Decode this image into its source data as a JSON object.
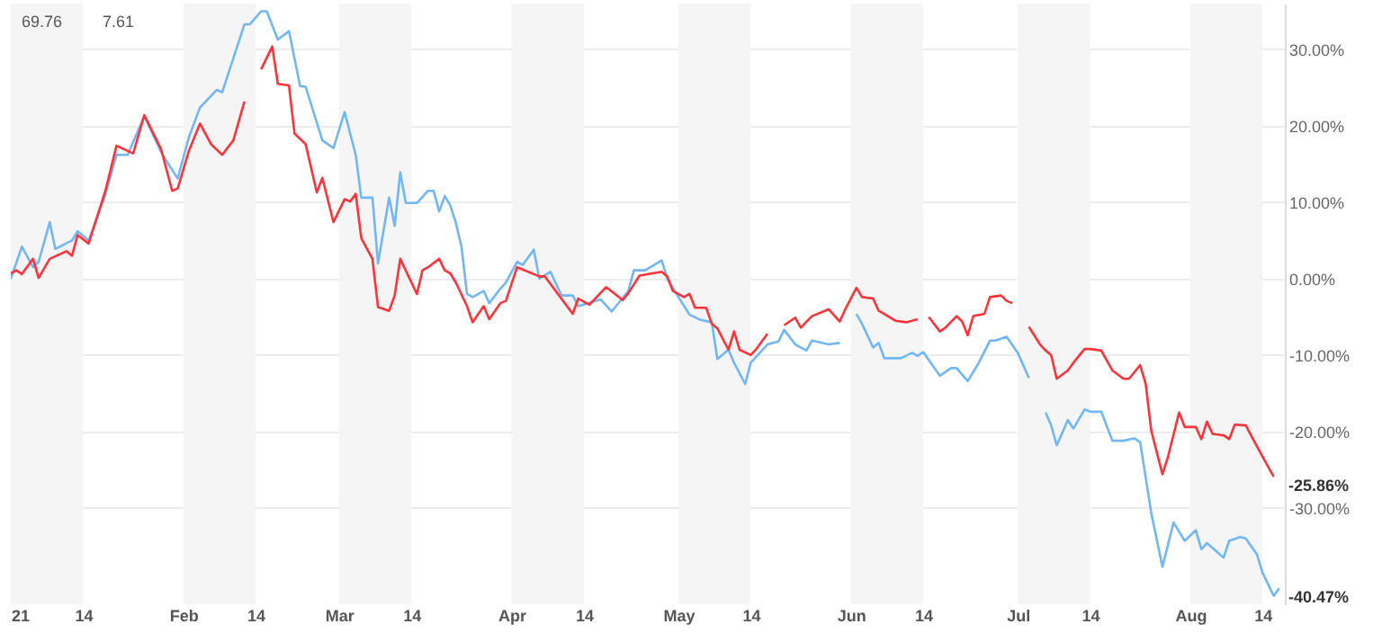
{
  "chart_data": {
    "type": "line",
    "xlim": [
      "--01-01",
      "--08-18"
    ],
    "xticks": [
      {
        "value": "--01-01",
        "label": "21"
      },
      {
        "value": "--01-14",
        "label": "14"
      },
      {
        "value": "--02-01",
        "label": "Feb"
      },
      {
        "value": "--02-14",
        "label": "14"
      },
      {
        "value": "--03-01",
        "label": "Mar"
      },
      {
        "value": "--03-14",
        "label": "14"
      },
      {
        "value": "--04-01",
        "label": "Apr"
      },
      {
        "value": "--04-14",
        "label": "14"
      },
      {
        "value": "--05-01",
        "label": "May"
      },
      {
        "value": "--05-14",
        "label": "14"
      },
      {
        "value": "--06-01",
        "label": "Jun"
      },
      {
        "value": "--06-14",
        "label": "14"
      },
      {
        "value": "--07-01",
        "label": "Jul"
      },
      {
        "value": "--07-14",
        "label": "14"
      },
      {
        "value": "--08-01",
        "label": "Aug"
      },
      {
        "value": "--08-14",
        "label": "14"
      }
    ],
    "ylim": [
      -42.6,
      36
    ],
    "yticks": [
      {
        "value": 30,
        "label": "30.00%"
      },
      {
        "value": 20,
        "label": "20.00%"
      },
      {
        "value": 10,
        "label": "10.00%"
      },
      {
        "value": 0,
        "label": "0.00%"
      },
      {
        "value": -10,
        "label": "-10.00%"
      },
      {
        "value": -20,
        "label": "-20.00%"
      },
      {
        "value": -30,
        "label": "-30.00%"
      }
    ],
    "grid": "y",
    "bands": [
      {
        "axis": "x",
        "from": "--01-01",
        "to": "--01-14",
        "color": "#f5f5f5"
      },
      {
        "axis": "x",
        "from": "--02-01",
        "to": "--02-14",
        "color": "#f5f5f5"
      },
      {
        "axis": "x",
        "from": "--03-01",
        "to": "--03-14",
        "color": "#f5f5f5"
      },
      {
        "axis": "x",
        "from": "--04-01",
        "to": "--04-14",
        "color": "#f5f5f5"
      },
      {
        "axis": "x",
        "from": "--05-01",
        "to": "--05-14",
        "color": "#f5f5f5"
      },
      {
        "axis": "x",
        "from": "--06-01",
        "to": "--06-14",
        "color": "#f5f5f5"
      },
      {
        "axis": "x",
        "from": "--07-01",
        "to": "--07-14",
        "color": "#f5f5f5"
      },
      {
        "axis": "x",
        "from": "--08-01",
        "to": "--08-14",
        "color": "#f5f5f5"
      }
    ],
    "annotations": [
      "69.76",
      "7.61",
      "-25.86%",
      "-40.47%"
    ],
    "series": [
      {
        "color": "#72b6f4",
        "x": [
          "--01-01",
          "--01-03",
          "--01-05",
          "--01-06",
          "--01-08",
          "--01-09",
          "--01-12",
          "--01-13",
          "--01-15",
          "--01-18",
          "--01-20",
          "--01-22",
          "--01-25",
          "--01-28",
          "--01-29",
          "--01-31",
          "--02-02",
          "--02-04",
          "--02-07",
          "--02-08",
          "--02-12",
          "--02-13",
          "--02-15",
          "--02-16",
          "--02-18",
          "--02-20",
          "--02-22",
          "--02-23",
          "--02-26",
          "--02-28",
          "--03-02",
          "--03-04",
          "--03-05",
          "--03-07",
          "--03-08",
          "--03-10",
          "--03-11",
          "--03-12",
          "--03-13",
          "--03-15",
          "--03-17",
          "--03-18",
          "--03-19",
          "--03-20",
          "--03-21",
          "--03-22",
          "--03-23",
          "--03-24",
          "--03-25",
          "--03-27",
          "--03-28",
          "--03-30",
          "--03-31",
          "--04-02",
          "--04-03",
          "--04-05",
          "--04-06",
          "--04-08",
          "--04-10",
          "--04-12",
          "--04-13",
          "--04-17",
          "--04-19",
          "--04-22",
          "--04-23",
          "--04-25",
          "--04-28",
          "--04-29",
          "--05-01",
          "--05-03",
          "--05-05",
          "--05-07",
          "--05-08",
          "--05-10",
          "--05-11",
          "--05-13",
          "--05-14",
          "--05-17",
          "--05-19",
          "--05-20",
          "--05-22",
          "--05-24",
          "--05-25",
          "--05-28",
          "--05-30",
          "--05-31",
          "--06-02",
          "--06-03",
          "--06-05",
          "--06-06",
          "--06-07",
          "--06-10",
          "--06-12",
          "--06-13",
          "--06-14",
          "--06-17",
          "--06-19",
          "--06-20",
          "--06-22",
          "--06-24",
          "--06-26",
          "--06-27",
          "--06-29",
          "--07-01",
          "--07-03",
          "--07-04",
          "--07-06",
          "--07-07",
          "--07-08",
          "--07-10",
          "--07-11",
          "--07-13",
          "--07-14",
          "--07-16",
          "--07-18",
          "--07-20",
          "--07-22",
          "--07-23",
          "--07-25",
          "--07-27",
          "--07-29",
          "--07-31",
          "--08-02",
          "--08-03",
          "--08-04",
          "--08-07",
          "--08-08",
          "--08-10",
          "--08-11",
          "--08-13",
          "--08-14",
          "--08-16",
          "--08-17"
        ],
        "values": [
          0,
          4.2,
          1.5,
          2.2,
          7.4,
          3.9,
          5,
          6.2,
          5,
          11,
          16.2,
          16.2,
          21.3,
          16.6,
          15.4,
          13.1,
          18.5,
          22.4,
          24.7,
          24.4,
          33.3,
          33.3,
          35,
          35,
          31.3,
          32.4,
          25.2,
          25.1,
          18.1,
          17.1,
          21.8,
          16.2,
          10.6,
          10.6,
          2,
          10.6,
          6.9,
          13.9,
          9.9,
          9.9,
          11.5,
          11.5,
          8.8,
          10.8,
          9.6,
          7.3,
          4.2,
          -2,
          -2.4,
          -1.6,
          -3.2,
          -1.3,
          -0.5,
          2.2,
          1.8,
          3.8,
          0,
          0.9,
          -2.2,
          -2.2,
          -3.6,
          -2.7,
          -4.3,
          -1.6,
          1.1,
          1.1,
          2.4,
          0,
          -2.4,
          -4.7,
          -5.4,
          -5.7,
          -10.5,
          -9.3,
          -11,
          -13.8,
          -11,
          -8.6,
          -8.2,
          -6.7,
          -8.6,
          -9.4,
          -8.1,
          -8.6,
          -8.4,
          null,
          -4.6,
          -5.9,
          -9,
          -8.4,
          -10.4,
          -10.4,
          -9.7,
          -10.1,
          -9.6,
          -12.7,
          -11.7,
          -11.7,
          -13.4,
          -11,
          -8.1,
          -8.1,
          -7.6,
          -9.7,
          -13,
          null,
          -17.5,
          -19.2,
          -21.8,
          -18.5,
          -19.6,
          -17.1,
          -17.4,
          -17.4,
          -21.2,
          -21.2,
          -20.9,
          -21.4,
          -30.7,
          -37.7,
          -31.9,
          -34.3,
          -32.9,
          -35.4,
          -34.6,
          -36.5,
          -34.3,
          -33.8,
          -34,
          -36.1,
          -38.5,
          -41.5,
          -40.5
        ]
      },
      {
        "color": "#ff333a",
        "x": [
          "--01-01",
          "--01-02",
          "--01-03",
          "--01-05",
          "--01-06",
          "--01-08",
          "--01-11",
          "--01-12",
          "--01-13",
          "--01-15",
          "--01-18",
          "--01-20",
          "--01-23",
          "--01-25",
          "--01-28",
          "--01-30",
          "--01-31",
          "--02-02",
          "--02-04",
          "--02-06",
          "--02-08",
          "--02-10",
          "--02-12",
          "--02-13",
          "--02-15",
          "--02-17",
          "--02-18",
          "--02-20",
          "--02-21",
          "--02-23",
          "--02-25",
          "--02-26",
          "--02-28",
          "--03-02",
          "--03-03",
          "--03-04",
          "--03-05",
          "--03-07",
          "--03-08",
          "--03-10",
          "--03-11",
          "--03-12",
          "--03-15",
          "--03-16",
          "--03-17",
          "--03-19",
          "--03-20",
          "--03-21",
          "--03-22",
          "--03-24",
          "--03-25",
          "--03-27",
          "--03-28",
          "--03-30",
          "--03-31",
          "--04-02",
          "--04-06",
          "--04-07",
          "--04-12",
          "--04-13",
          "--04-15",
          "--04-18",
          "--04-21",
          "--04-22",
          "--04-24",
          "--04-28",
          "--04-29",
          "--04-30",
          "--05-02",
          "--05-03",
          "--05-04",
          "--05-06",
          "--05-07",
          "--05-08",
          "--05-10",
          "--05-11",
          "--05-12",
          "--05-14",
          "--05-15",
          "--05-17",
          "--05-18",
          "--05-20",
          "--05-22",
          "--05-23",
          "--05-25",
          "--05-28",
          "--05-30",
          "--05-31",
          "--06-02",
          "--06-03",
          "--06-05",
          "--06-06",
          "--06-07",
          "--06-09",
          "--06-11",
          "--06-13",
          "--06-14",
          "--06-15",
          "--06-17",
          "--06-18",
          "--06-20",
          "--06-21",
          "--06-22",
          "--06-23",
          "--06-25",
          "--06-26",
          "--06-28",
          "--06-29",
          "--06-30",
          "--07-01",
          "--07-03",
          "--07-05",
          "--07-06",
          "--07-07",
          "--07-08",
          "--07-10",
          "--07-11",
          "--07-13",
          "--07-14",
          "--07-16",
          "--07-18",
          "--07-20",
          "--07-21",
          "--07-23",
          "--07-24",
          "--07-25",
          "--07-27",
          "--07-28",
          "--07-30",
          "--07-31",
          "--08-02",
          "--08-03",
          "--08-04",
          "--08-05",
          "--08-07",
          "--08-08",
          "--08-09",
          "--08-11",
          "--08-12",
          "--08-14",
          "--08-16"
        ],
        "values": [
          0.7,
          1.1,
          0.6,
          2.6,
          0.1,
          2.6,
          3.6,
          3,
          5.7,
          4.6,
          11.5,
          17.4,
          16.4,
          21.4,
          17,
          11.5,
          11.8,
          16.7,
          20.3,
          17.6,
          16.2,
          18.1,
          23.2,
          null,
          27.4,
          30.4,
          25.5,
          25.3,
          19,
          17.6,
          11.3,
          13.2,
          7.4,
          10.4,
          10.1,
          11.1,
          5.3,
          2.6,
          -3.7,
          -4.2,
          -2.2,
          2.6,
          -2,
          1.1,
          1.5,
          2.6,
          1.1,
          0.7,
          -0.5,
          -3.6,
          -5.7,
          -3.6,
          -5.3,
          -3.2,
          -2.9,
          1.5,
          0.3,
          0.3,
          -4.6,
          -2.6,
          -3.4,
          -1.1,
          -2.8,
          -1.9,
          0.4,
          0.9,
          0.3,
          -1.6,
          -2.4,
          -2,
          -3.8,
          -3.8,
          -5.9,
          -6.5,
          -9.3,
          -6.9,
          -9.3,
          -10,
          -9.2,
          -7.2,
          null,
          -6.1,
          -5.1,
          -6.4,
          -4.9,
          -4,
          -5.6,
          -4,
          -1.2,
          -2.4,
          -2.6,
          -4.2,
          -4.6,
          -5.5,
          -5.7,
          -5.3,
          null,
          -5,
          -6.9,
          -6.4,
          -4.9,
          -5.6,
          -7.4,
          -4.9,
          -4.6,
          -2.4,
          -2.2,
          -2.9,
          -3.2,
          null,
          -6.3,
          -8.6,
          -9.4,
          -10,
          -13.1,
          -12,
          -11,
          -9.2,
          -9.2,
          -9.4,
          -12,
          -13.1,
          -13.1,
          -11.3,
          -13.8,
          -19.9,
          -25.6,
          -23.3,
          -17.5,
          -19.4,
          -19.4,
          -21,
          -18.7,
          -20.3,
          -20.5,
          -21,
          -19.1,
          -19.2,
          -20.6,
          -23.3,
          -25.9
        ]
      }
    ]
  }
}
